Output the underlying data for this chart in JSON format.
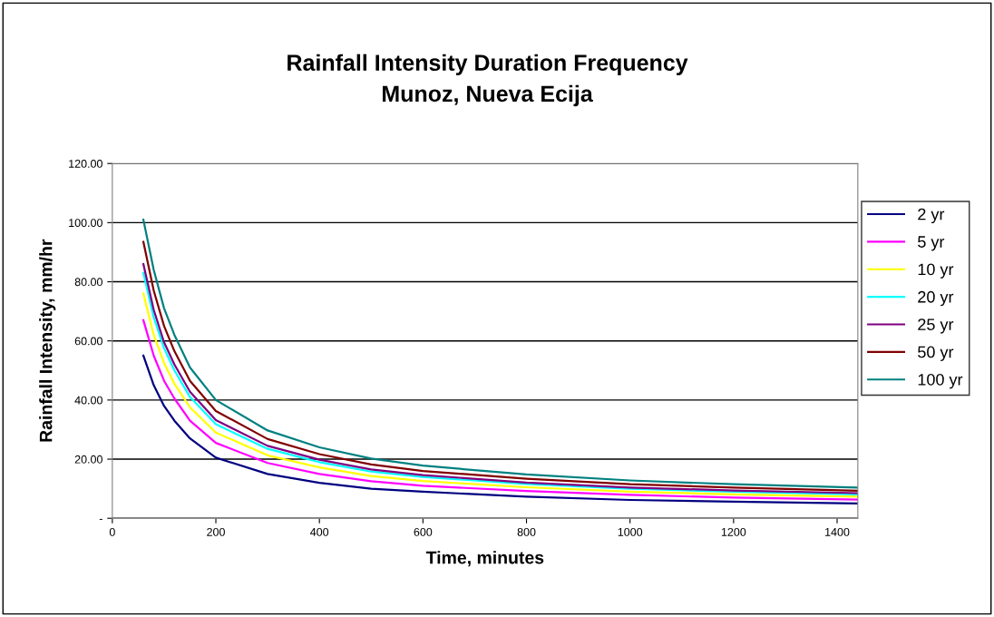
{
  "chart_data": {
    "type": "line",
    "title": "Rainfall Intensity Duration Frequency\nMunoz, Nueva Ecija",
    "xlabel": "Time, minutes",
    "ylabel": "Rainfall Intensity, mm/hr",
    "x": [
      60,
      80,
      100,
      120,
      150,
      200,
      300,
      400,
      500,
      600,
      800,
      1000,
      1200,
      1440
    ],
    "series": [
      {
        "name": "2 yr",
        "color": "#000080",
        "values": [
          55,
          45,
          38,
          33,
          27,
          20.5,
          15,
          12,
          10,
          9,
          7.3,
          6.2,
          5.6,
          5
        ]
      },
      {
        "name": "5 yr",
        "color": "#ff00ff",
        "values": [
          67,
          55,
          46.5,
          40.5,
          33,
          25.5,
          18.7,
          15,
          12.5,
          11,
          9.2,
          7.9,
          7,
          6.3
        ]
      },
      {
        "name": "10 yr",
        "color": "#ffff00",
        "values": [
          76,
          62,
          52.5,
          45.5,
          37.5,
          29,
          21.3,
          17.2,
          14.3,
          12.6,
          10.5,
          9,
          8.1,
          7.3
        ]
      },
      {
        "name": "20 yr",
        "color": "#00ffff",
        "values": [
          83,
          68,
          57.5,
          50,
          41,
          31.8,
          23.5,
          19,
          15.8,
          14,
          11.6,
          10,
          9,
          8.1
        ]
      },
      {
        "name": "25 yr",
        "color": "#800080",
        "values": [
          86,
          70.5,
          59.5,
          52,
          42.8,
          33.2,
          24.5,
          19.8,
          16.5,
          14.6,
          12.1,
          10.4,
          9.4,
          8.5
        ]
      },
      {
        "name": "50 yr",
        "color": "#800000",
        "values": [
          93.5,
          77,
          65,
          56.5,
          46.5,
          36.3,
          26.8,
          21.7,
          18.2,
          16,
          13.4,
          11.5,
          10.4,
          9.3
        ]
      },
      {
        "name": "100 yr",
        "color": "#008080",
        "values": [
          101,
          84,
          71,
          62,
          51,
          40,
          29.7,
          24,
          20.2,
          17.8,
          14.8,
          12.8,
          11.5,
          10.4
        ]
      }
    ],
    "xlim": [
      0,
      1440
    ],
    "xticks": [
      0,
      200,
      400,
      600,
      800,
      1000,
      1200,
      1400
    ],
    "ylim": [
      0,
      120
    ],
    "yticks": [
      {
        "value": 0,
        "label": "-"
      },
      {
        "value": 20,
        "label": "20.00"
      },
      {
        "value": 40,
        "label": "40.00"
      },
      {
        "value": 60,
        "label": "60.00"
      },
      {
        "value": 80,
        "label": "80.00"
      },
      {
        "value": 100,
        "label": "100.00"
      },
      {
        "value": 120,
        "label": "120.00"
      }
    ],
    "grid": "y",
    "legend": "right",
    "marker": "none",
    "line_style": "solid"
  }
}
